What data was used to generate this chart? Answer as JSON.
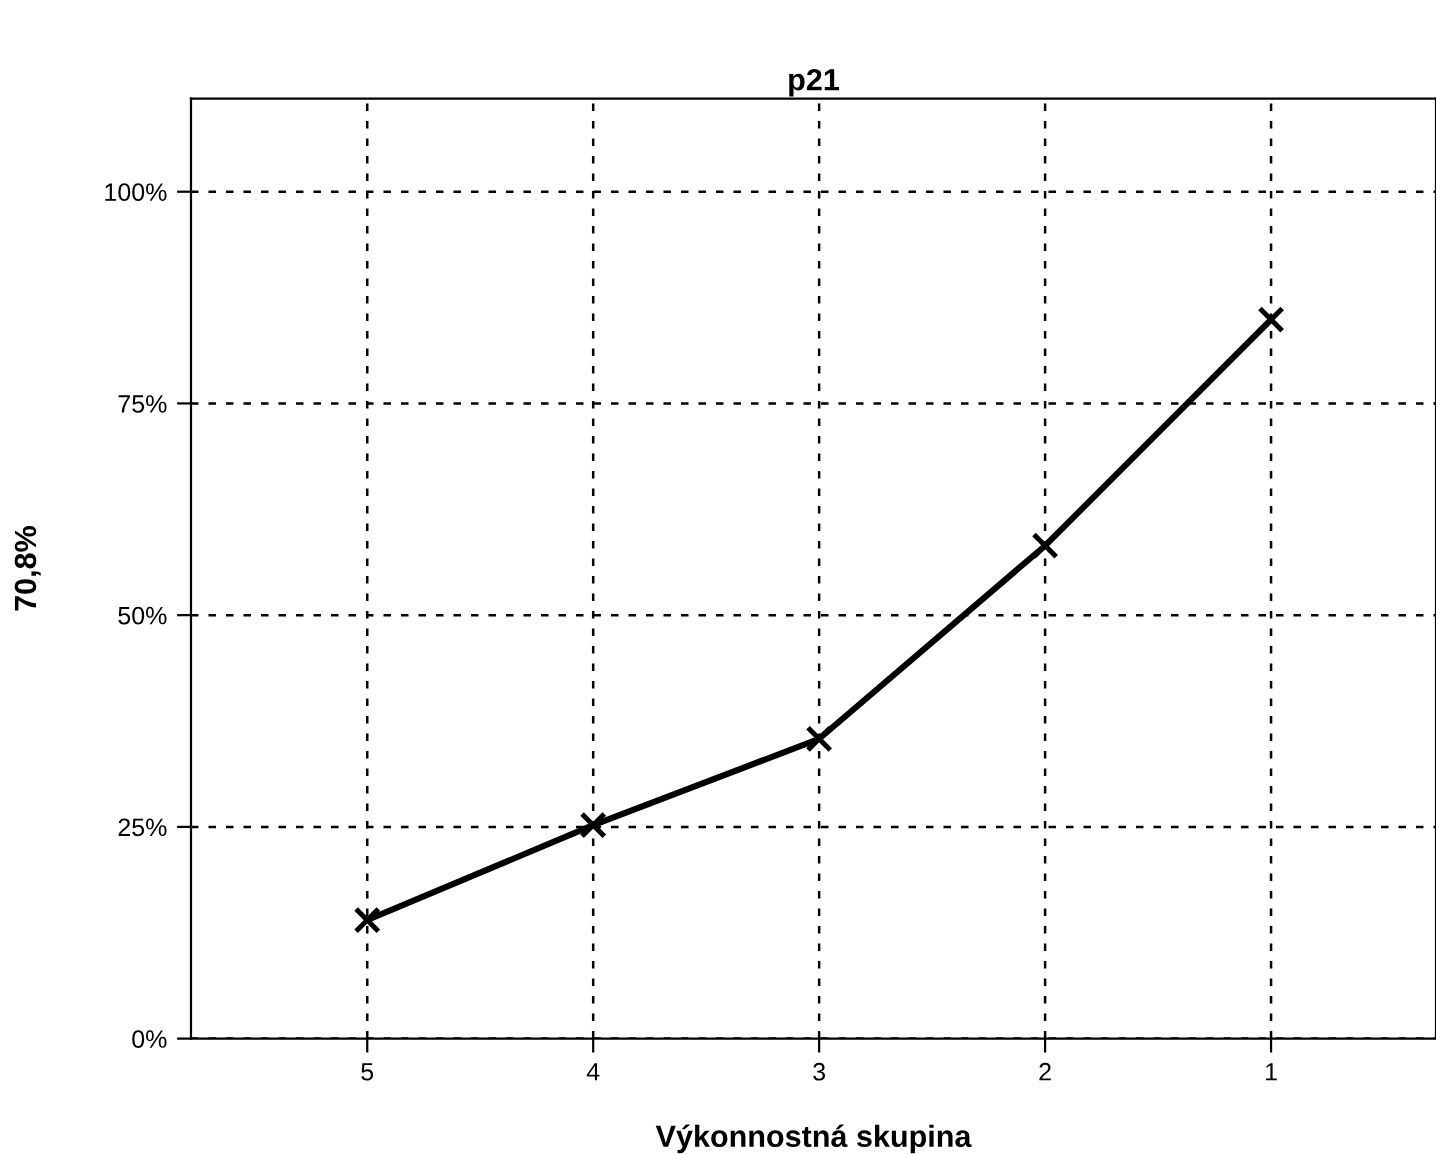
{
  "chart_data": {
    "type": "line",
    "title": "p21",
    "xlabel": "Výkonnostná skupina",
    "ylabel": "70,8%",
    "categories": [
      "5",
      "4",
      "3",
      "2",
      "1"
    ],
    "series": [
      {
        "color": "#000000",
        "values": [
          14.0,
          25.2,
          35.4,
          58.2,
          84.9
        ]
      }
    ],
    "ylim": [
      0,
      111
    ],
    "yticks": [
      {
        "value": 0,
        "label": "0%"
      },
      {
        "value": 25,
        "label": "25%"
      },
      {
        "value": 50,
        "label": "50%"
      },
      {
        "value": 75,
        "label": "75%"
      },
      {
        "value": 100,
        "label": "100%"
      }
    ],
    "grid": true,
    "marker": "cross",
    "line_style": "solid",
    "legend": false
  }
}
